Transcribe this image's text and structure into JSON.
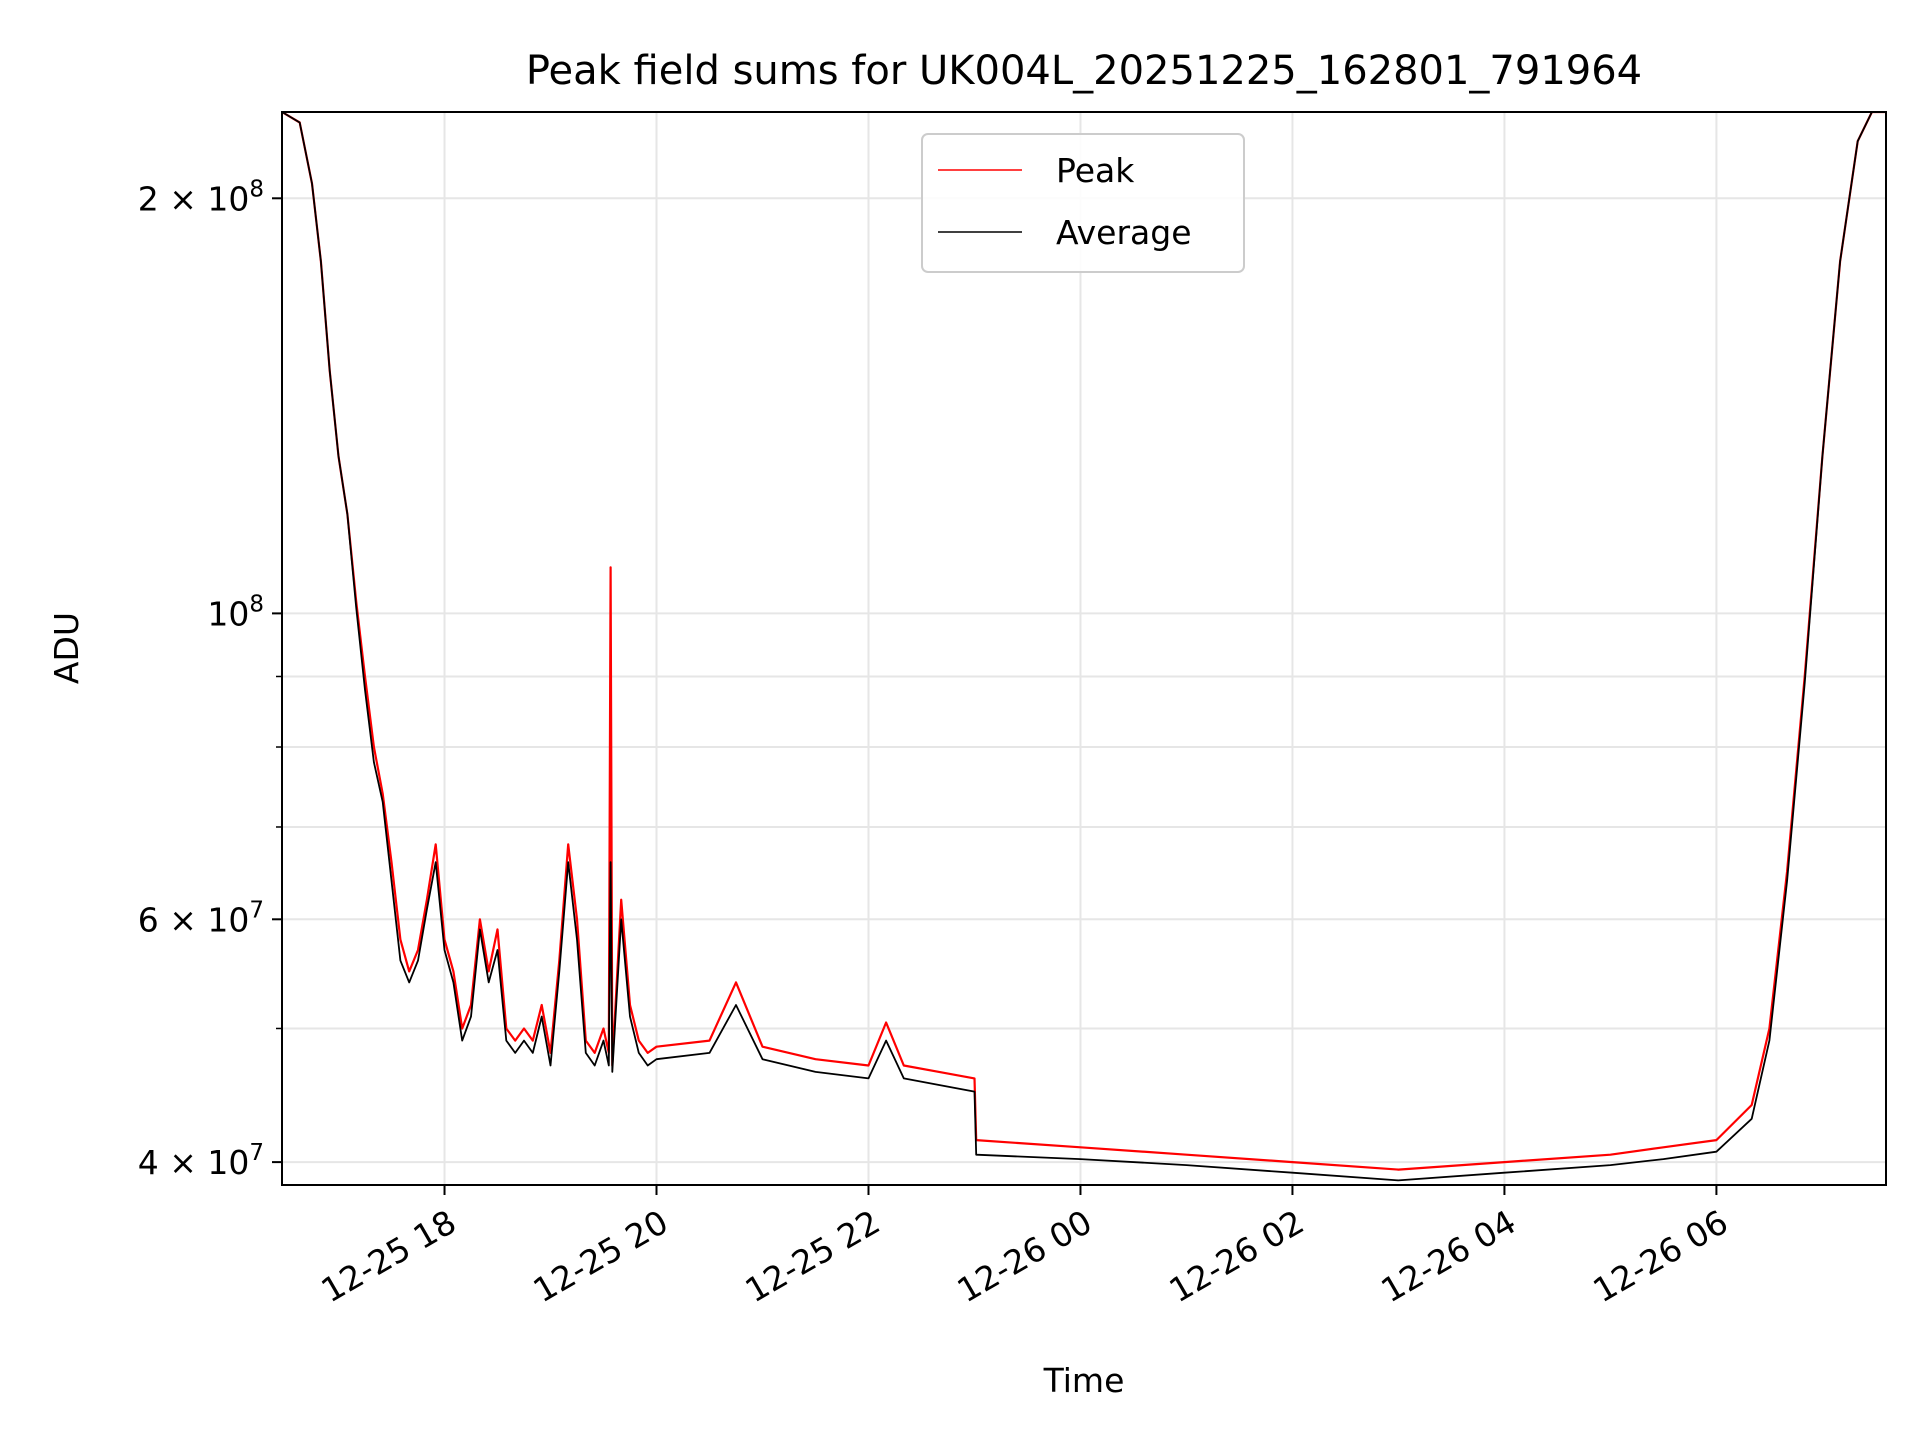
{
  "chart_data": {
    "type": "line",
    "title": "Peak field sums for UK004L_20251225_162801_791964",
    "xlabel": "Time",
    "ylabel": "ADU",
    "yscale": "log",
    "ylim": [
      38500000,
      231000000
    ],
    "xlim": [
      "2025-12-25 16:28",
      "2025-12-26 07:36"
    ],
    "grid": true,
    "legend_position": "top-center",
    "x_ticks": [
      {
        "x": "2025-12-25 18:00",
        "label": "12-25 18"
      },
      {
        "x": "2025-12-25 20:00",
        "label": "12-25 20"
      },
      {
        "x": "2025-12-25 22:00",
        "label": "12-25 22"
      },
      {
        "x": "2025-12-26 00:00",
        "label": "12-26 00"
      },
      {
        "x": "2025-12-26 02:00",
        "label": "12-26 02"
      },
      {
        "x": "2025-12-26 04:00",
        "label": "12-26 04"
      },
      {
        "x": "2025-12-26 06:00",
        "label": "12-26 06"
      }
    ],
    "y_major_ticks": [
      {
        "y": 40000000,
        "mantissa": "4",
        "exp": "7"
      },
      {
        "y": 60000000,
        "mantissa": "6",
        "exp": "7"
      },
      {
        "y": 100000000,
        "mantissa": "",
        "exp": "8"
      },
      {
        "y": 200000000,
        "mantissa": "2",
        "exp": "8"
      }
    ],
    "y_minor_ticks": [
      50000000,
      70000000,
      80000000,
      90000000
    ],
    "series": [
      {
        "name": "Peak",
        "color": "#ff0000",
        "points": [
          [
            "2025-12-25 16:28",
            231000000
          ],
          [
            "2025-12-25 16:38",
            227000000
          ],
          [
            "2025-12-25 16:45",
            205000000
          ],
          [
            "2025-12-25 16:50",
            180000000
          ],
          [
            "2025-12-25 16:55",
            150000000
          ],
          [
            "2025-12-25 17:00",
            130000000
          ],
          [
            "2025-12-25 17:05",
            118000000
          ],
          [
            "2025-12-25 17:10",
            102000000
          ],
          [
            "2025-12-25 17:15",
            90000000
          ],
          [
            "2025-12-25 17:20",
            80000000
          ],
          [
            "2025-12-25 17:25",
            74000000
          ],
          [
            "2025-12-25 17:30",
            66000000
          ],
          [
            "2025-12-25 17:35",
            58000000
          ],
          [
            "2025-12-25 17:40",
            55000000
          ],
          [
            "2025-12-25 17:45",
            57000000
          ],
          [
            "2025-12-25 17:50",
            62000000
          ],
          [
            "2025-12-25 17:55",
            68000000
          ],
          [
            "2025-12-25 18:00",
            58000000
          ],
          [
            "2025-12-25 18:05",
            55000000
          ],
          [
            "2025-12-25 18:10",
            50000000
          ],
          [
            "2025-12-25 18:15",
            52000000
          ],
          [
            "2025-12-25 18:20",
            60000000
          ],
          [
            "2025-12-25 18:25",
            55000000
          ],
          [
            "2025-12-25 18:30",
            59000000
          ],
          [
            "2025-12-25 18:35",
            50000000
          ],
          [
            "2025-12-25 18:40",
            49000000
          ],
          [
            "2025-12-25 18:45",
            50000000
          ],
          [
            "2025-12-25 18:50",
            49000000
          ],
          [
            "2025-12-25 18:55",
            52000000
          ],
          [
            "2025-12-25 19:00",
            48000000
          ],
          [
            "2025-12-25 19:05",
            56000000
          ],
          [
            "2025-12-25 19:10",
            68000000
          ],
          [
            "2025-12-25 19:15",
            60000000
          ],
          [
            "2025-12-25 19:20",
            49000000
          ],
          [
            "2025-12-25 19:25",
            48000000
          ],
          [
            "2025-12-25 19:30",
            50000000
          ],
          [
            "2025-12-25 19:33",
            48000000
          ],
          [
            "2025-12-25 19:34",
            108000000
          ],
          [
            "2025-12-25 19:35",
            47000000
          ],
          [
            "2025-12-25 19:40",
            62000000
          ],
          [
            "2025-12-25 19:45",
            52000000
          ],
          [
            "2025-12-25 19:50",
            49000000
          ],
          [
            "2025-12-25 19:55",
            48000000
          ],
          [
            "2025-12-25 20:00",
            48500000
          ],
          [
            "2025-12-25 20:30",
            49000000
          ],
          [
            "2025-12-25 20:45",
            54000000
          ],
          [
            "2025-12-25 21:00",
            48500000
          ],
          [
            "2025-12-25 21:30",
            47500000
          ],
          [
            "2025-12-25 22:00",
            47000000
          ],
          [
            "2025-12-25 22:10",
            50500000
          ],
          [
            "2025-12-25 22:20",
            47000000
          ],
          [
            "2025-12-25 22:40",
            46500000
          ],
          [
            "2025-12-25 23:00",
            46000000
          ],
          [
            "2025-12-25 23:01",
            41500000
          ],
          [
            "2025-12-26 00:00",
            41000000
          ],
          [
            "2025-12-26 01:00",
            40500000
          ],
          [
            "2025-12-26 02:00",
            40000000
          ],
          [
            "2025-12-26 03:00",
            39500000
          ],
          [
            "2025-12-26 04:00",
            40000000
          ],
          [
            "2025-12-26 05:00",
            40500000
          ],
          [
            "2025-12-26 05:30",
            41000000
          ],
          [
            "2025-12-26 06:00",
            41500000
          ],
          [
            "2025-12-26 06:20",
            44000000
          ],
          [
            "2025-12-26 06:30",
            50000000
          ],
          [
            "2025-12-26 06:40",
            65000000
          ],
          [
            "2025-12-26 06:50",
            90000000
          ],
          [
            "2025-12-26 07:00",
            130000000
          ],
          [
            "2025-12-26 07:10",
            180000000
          ],
          [
            "2025-12-26 07:20",
            220000000
          ],
          [
            "2025-12-26 07:28",
            231000000
          ],
          [
            "2025-12-26 07:36",
            231000000
          ]
        ]
      },
      {
        "name": "Average",
        "color": "#000000",
        "points": [
          [
            "2025-12-25 16:28",
            231000000
          ],
          [
            "2025-12-25 16:38",
            227000000
          ],
          [
            "2025-12-25 16:45",
            205000000
          ],
          [
            "2025-12-25 16:50",
            180000000
          ],
          [
            "2025-12-25 16:55",
            150000000
          ],
          [
            "2025-12-25 17:00",
            130000000
          ],
          [
            "2025-12-25 17:05",
            118000000
          ],
          [
            "2025-12-25 17:10",
            101000000
          ],
          [
            "2025-12-25 17:15",
            88000000
          ],
          [
            "2025-12-25 17:20",
            78000000
          ],
          [
            "2025-12-25 17:25",
            73000000
          ],
          [
            "2025-12-25 17:30",
            64000000
          ],
          [
            "2025-12-25 17:35",
            56000000
          ],
          [
            "2025-12-25 17:40",
            54000000
          ],
          [
            "2025-12-25 17:45",
            56000000
          ],
          [
            "2025-12-25 17:50",
            61000000
          ],
          [
            "2025-12-25 17:55",
            66000000
          ],
          [
            "2025-12-25 18:00",
            57000000
          ],
          [
            "2025-12-25 18:05",
            54000000
          ],
          [
            "2025-12-25 18:10",
            49000000
          ],
          [
            "2025-12-25 18:15",
            51000000
          ],
          [
            "2025-12-25 18:20",
            59000000
          ],
          [
            "2025-12-25 18:25",
            54000000
          ],
          [
            "2025-12-25 18:30",
            57000000
          ],
          [
            "2025-12-25 18:35",
            49000000
          ],
          [
            "2025-12-25 18:40",
            48000000
          ],
          [
            "2025-12-25 18:45",
            49000000
          ],
          [
            "2025-12-25 18:50",
            48000000
          ],
          [
            "2025-12-25 18:55",
            51000000
          ],
          [
            "2025-12-25 19:00",
            47000000
          ],
          [
            "2025-12-25 19:05",
            55000000
          ],
          [
            "2025-12-25 19:10",
            66000000
          ],
          [
            "2025-12-25 19:15",
            58000000
          ],
          [
            "2025-12-25 19:20",
            48000000
          ],
          [
            "2025-12-25 19:25",
            47000000
          ],
          [
            "2025-12-25 19:30",
            49000000
          ],
          [
            "2025-12-25 19:33",
            47000000
          ],
          [
            "2025-12-25 19:34",
            66000000
          ],
          [
            "2025-12-25 19:35",
            46500000
          ],
          [
            "2025-12-25 19:40",
            60000000
          ],
          [
            "2025-12-25 19:45",
            51000000
          ],
          [
            "2025-12-25 19:50",
            48000000
          ],
          [
            "2025-12-25 19:55",
            47000000
          ],
          [
            "2025-12-25 20:00",
            47500000
          ],
          [
            "2025-12-25 20:30",
            48000000
          ],
          [
            "2025-12-25 20:45",
            52000000
          ],
          [
            "2025-12-25 21:00",
            47500000
          ],
          [
            "2025-12-25 21:30",
            46500000
          ],
          [
            "2025-12-25 22:00",
            46000000
          ],
          [
            "2025-12-25 22:10",
            49000000
          ],
          [
            "2025-12-25 22:20",
            46000000
          ],
          [
            "2025-12-25 22:40",
            45500000
          ],
          [
            "2025-12-25 23:00",
            45000000
          ],
          [
            "2025-12-25 23:01",
            40500000
          ],
          [
            "2025-12-26 00:00",
            40200000
          ],
          [
            "2025-12-26 01:00",
            39800000
          ],
          [
            "2025-12-26 02:00",
            39300000
          ],
          [
            "2025-12-26 03:00",
            38800000
          ],
          [
            "2025-12-26 04:00",
            39300000
          ],
          [
            "2025-12-26 05:00",
            39800000
          ],
          [
            "2025-12-26 05:30",
            40200000
          ],
          [
            "2025-12-26 06:00",
            40700000
          ],
          [
            "2025-12-26 06:20",
            43000000
          ],
          [
            "2025-12-26 06:30",
            49000000
          ],
          [
            "2025-12-26 06:40",
            64000000
          ],
          [
            "2025-12-26 06:50",
            89000000
          ],
          [
            "2025-12-26 07:00",
            130000000
          ],
          [
            "2025-12-26 07:10",
            180000000
          ],
          [
            "2025-12-26 07:20",
            220000000
          ],
          [
            "2025-12-26 07:28",
            231000000
          ],
          [
            "2025-12-26 07:36",
            231000000
          ]
        ]
      }
    ]
  }
}
